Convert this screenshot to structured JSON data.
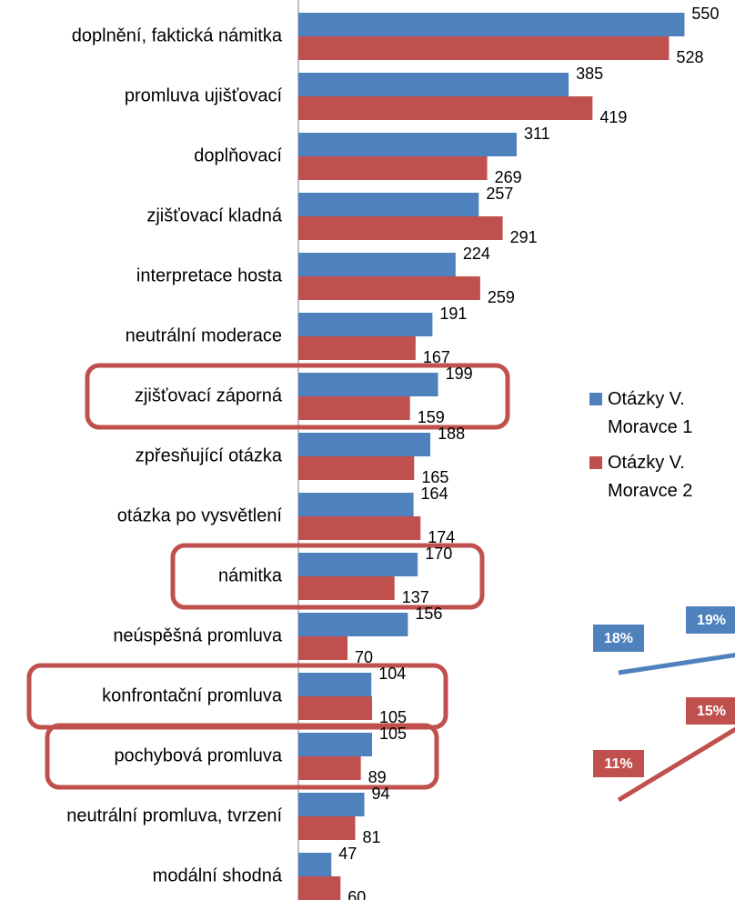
{
  "chart_data": [
    {
      "type": "barh",
      "categories": [
        "doplnění, faktická námitka",
        "promluva ujišťovací",
        "doplňovací",
        "zjišťovací kladná",
        "interpretace hosta",
        "neutrální moderace",
        "zjišťovací záporná",
        "zpřesňující otázka",
        "otázka po vysvětlení",
        "námitka",
        "neúspěšná promluva",
        "konfrontační promluva",
        "pochybová promluva",
        "neutrální promluva, tvrzení",
        "modální shodná"
      ],
      "series": [
        {
          "name": "Otázky V. Moravce 1",
          "color": "#4f81bd",
          "values": [
            550,
            385,
            311,
            257,
            224,
            191,
            199,
            188,
            164,
            170,
            156,
            104,
            105,
            94,
            47
          ]
        },
        {
          "name": "Otázky V. Moravce 2",
          "color": "#c0504d",
          "values": [
            528,
            419,
            269,
            291,
            259,
            167,
            159,
            165,
            174,
            137,
            70,
            105,
            89,
            81,
            60
          ]
        }
      ],
      "xlim": [
        0,
        622
      ]
    },
    {
      "type": "line",
      "categories": [
        null,
        null
      ],
      "series": [
        {
          "color": "#4f81bd",
          "values": [
            18,
            19
          ],
          "value_labels": [
            "18%",
            "19%"
          ]
        },
        {
          "color": "#c0504d",
          "values": [
            11,
            15
          ],
          "value_labels": [
            "11%",
            "15%"
          ]
        }
      ],
      "ylim": [
        5,
        25
      ]
    }
  ]
}
